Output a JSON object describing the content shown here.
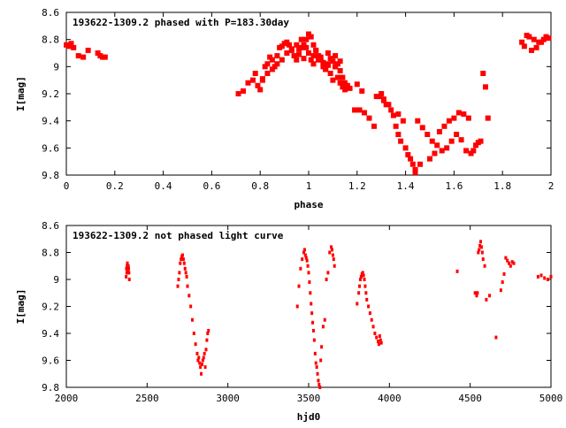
{
  "chart_data": [
    {
      "type": "scatter",
      "title": "193622-1309.2 phased with P=183.30day",
      "xlabel": "phase",
      "ylabel": "I[mag]",
      "xlim": [
        0,
        2
      ],
      "ylim": [
        8.6,
        9.8
      ],
      "y_inverted": true,
      "x_ticks": [
        0,
        0.2,
        0.4,
        0.6,
        0.8,
        1,
        1.2,
        1.4,
        1.6,
        1.8,
        2
      ],
      "y_ticks": [
        8.6,
        8.8,
        9,
        9.2,
        9.4,
        9.6,
        9.8
      ],
      "x_tick_labels": [
        "0",
        "0.2",
        "0.4",
        "0.6",
        "0.8",
        "1",
        "1.2",
        "1.4",
        "1.6",
        "1.8",
        "2"
      ],
      "y_tick_labels": [
        "8.6",
        "8.8",
        "9",
        "9.2",
        "9.4",
        "9.6",
        "9.8"
      ],
      "marker": "large",
      "color": "#ff0000",
      "series": [
        {
          "x": [
            0.0,
            0.01,
            0.02,
            0.03,
            0.05,
            0.07,
            0.09,
            0.14,
            0.15,
            0.16,
            0.13,
            0.71,
            0.73,
            0.75,
            0.77,
            0.78,
            0.8,
            0.81,
            0.82,
            0.83,
            0.84,
            0.85,
            0.86,
            0.87,
            0.88,
            0.89,
            0.9,
            0.91,
            0.92,
            0.93,
            0.94,
            0.95,
            0.96,
            0.97,
            0.98,
            0.99,
            1.0,
            1.01,
            1.02,
            1.03,
            1.04,
            1.05,
            1.06,
            1.07,
            1.08,
            1.09,
            1.1,
            1.11,
            1.12,
            1.13,
            1.14,
            1.15,
            1.16,
            1.17,
            1.19,
            1.21,
            1.23,
            1.25,
            1.27,
            1.29,
            1.3,
            1.31,
            1.32,
            1.34,
            1.35,
            1.36,
            1.37,
            1.38,
            1.4,
            1.41,
            1.42,
            1.43,
            1.44,
            1.45,
            1.47,
            1.49,
            1.51,
            1.53,
            1.55,
            1.57,
            1.59,
            1.61,
            1.63,
            1.65,
            1.67,
            1.68,
            1.69,
            1.7,
            1.71,
            1.72,
            1.73,
            1.74,
            0.79,
            0.81,
            0.83,
            0.85,
            0.87,
            0.89,
            0.91,
            0.93,
            0.95,
            0.97,
            0.99,
            1.0,
            1.01,
            1.02,
            1.03,
            1.04,
            1.05,
            1.06,
            1.07,
            1.08,
            1.09,
            1.1,
            1.11,
            1.12,
            1.13,
            1.14,
            1.15,
            1.16,
            0.98,
            0.96,
            1.02,
            1.06,
            1.08,
            1.11,
            1.13,
            1.88,
            1.89,
            1.9,
            1.91,
            1.92,
            1.93,
            1.94,
            1.95,
            1.96,
            1.97,
            1.98,
            1.99,
            1.44,
            1.46,
            1.5,
            1.52,
            1.54,
            1.56,
            1.58,
            1.6,
            1.62,
            1.64,
            1.66,
            1.39,
            1.37,
            1.33,
            1.31,
            1.28,
            1.22,
            1.2
          ],
          "y": [
            8.84,
            8.85,
            8.83,
            8.86,
            8.92,
            8.93,
            8.88,
            8.92,
            8.93,
            8.93,
            8.9,
            9.2,
            9.18,
            9.12,
            9.1,
            9.05,
            9.17,
            9.1,
            9.0,
            8.98,
            8.93,
            8.95,
            9.0,
            8.92,
            8.86,
            8.85,
            8.83,
            8.82,
            8.84,
            8.87,
            8.92,
            8.95,
            8.91,
            8.86,
            8.84,
            8.8,
            8.76,
            8.78,
            8.84,
            8.88,
            8.92,
            8.95,
            8.98,
            9.02,
            8.99,
            9.05,
            9.1,
            9.0,
            9.08,
            9.12,
            9.15,
            9.17,
            9.15,
            9.16,
            9.32,
            9.32,
            9.34,
            9.38,
            9.44,
            9.22,
            9.2,
            9.24,
            9.28,
            9.32,
            9.36,
            9.44,
            9.5,
            9.55,
            9.6,
            9.65,
            9.68,
            9.72,
            9.76,
            9.4,
            9.45,
            9.5,
            9.55,
            9.58,
            9.62,
            9.6,
            9.55,
            9.5,
            9.54,
            9.62,
            9.64,
            9.62,
            9.58,
            9.56,
            9.55,
            9.05,
            9.15,
            9.38,
            9.14,
            9.09,
            9.05,
            9.02,
            8.98,
            8.95,
            8.9,
            8.88,
            8.84,
            8.8,
            8.86,
            8.9,
            8.95,
            8.92,
            8.88,
            8.95,
            8.93,
            8.97,
            9.02,
            8.98,
            8.94,
            8.96,
            9.0,
            8.98,
            9.03,
            9.08,
            9.12,
            9.14,
            8.94,
            8.87,
            8.98,
            9.0,
            8.9,
            8.92,
            8.96,
            8.82,
            8.85,
            8.77,
            8.78,
            8.88,
            8.8,
            8.86,
            8.82,
            8.82,
            8.8,
            8.78,
            8.79,
            9.78,
            9.72,
            9.68,
            9.64,
            9.48,
            9.44,
            9.4,
            9.38,
            9.34,
            9.35,
            9.38,
            9.4,
            9.35,
            9.28,
            9.25,
            9.22,
            9.18,
            9.13
          ]
        }
      ]
    },
    {
      "type": "scatter",
      "title": "193622-1309.2 not phased light curve",
      "xlabel": "hjd0",
      "ylabel": "I[mag]",
      "xlim": [
        2000,
        5000
      ],
      "ylim": [
        8.6,
        9.8
      ],
      "y_inverted": true,
      "x_ticks": [
        2000,
        2500,
        3000,
        3500,
        4000,
        4500,
        5000
      ],
      "y_ticks": [
        8.6,
        8.8,
        9,
        9.2,
        9.4,
        9.6,
        9.8
      ],
      "x_tick_labels": [
        "2000",
        "2500",
        "3000",
        "3500",
        "4000",
        "4500",
        "5000"
      ],
      "y_tick_labels": [
        "8.6",
        "8.8",
        "9",
        "9.2",
        "9.4",
        "9.6",
        "9.8"
      ],
      "marker": "small",
      "color": "#ff0000",
      "series": [
        {
          "x": [
            2370,
            2372,
            2374,
            2376,
            2378,
            2380,
            2382,
            2384,
            2386,
            2388,
            2390,
            2690,
            2695,
            2700,
            2705,
            2710,
            2715,
            2720,
            2725,
            2730,
            2735,
            2740,
            2745,
            2750,
            2760,
            2770,
            2780,
            2790,
            2800,
            2810,
            2815,
            2820,
            2825,
            2830,
            2835,
            2840,
            2845,
            2850,
            2855,
            2860,
            2865,
            2870,
            2875,
            2880,
            3430,
            3440,
            3450,
            3460,
            3470,
            3475,
            3480,
            3485,
            3490,
            3495,
            3500,
            3505,
            3510,
            3515,
            3520,
            3525,
            3530,
            3535,
            3540,
            3545,
            3550,
            3555,
            3560,
            3565,
            3570,
            3575,
            3580,
            3590,
            3600,
            3610,
            3620,
            3630,
            3640,
            3645,
            3650,
            3655,
            3660,
            3800,
            3810,
            3815,
            3820,
            3825,
            3830,
            3835,
            3840,
            3845,
            3850,
            3855,
            3860,
            3870,
            3880,
            3890,
            3900,
            3910,
            3920,
            3930,
            3935,
            3940,
            3945,
            3950,
            4420,
            4530,
            4540,
            4545,
            4550,
            4555,
            4560,
            4565,
            4570,
            4575,
            4580,
            4590,
            4600,
            4620,
            4660,
            4690,
            4700,
            4710,
            4720,
            4730,
            4740,
            4750,
            4760,
            4770,
            4920,
            4940,
            4960,
            4980,
            5000
          ],
          "y": [
            8.98,
            8.92,
            8.95,
            8.9,
            8.88,
            8.93,
            8.95,
            8.9,
            8.92,
            8.95,
            9.0,
            9.05,
            9.0,
            8.95,
            8.88,
            8.85,
            8.83,
            8.82,
            8.85,
            8.88,
            8.92,
            8.95,
            8.98,
            9.05,
            9.12,
            9.2,
            9.3,
            9.4,
            9.48,
            9.55,
            9.6,
            9.58,
            9.62,
            9.65,
            9.7,
            9.63,
            9.6,
            9.58,
            9.55,
            9.65,
            9.52,
            9.45,
            9.4,
            9.38,
            9.2,
            9.05,
            8.92,
            8.85,
            8.8,
            8.78,
            8.82,
            8.84,
            8.86,
            8.9,
            8.95,
            9.02,
            9.1,
            9.18,
            9.25,
            9.32,
            9.38,
            9.45,
            9.55,
            9.62,
            9.65,
            9.7,
            9.75,
            9.78,
            9.8,
            9.6,
            9.5,
            9.35,
            9.3,
            9.0,
            8.95,
            8.8,
            8.76,
            8.78,
            8.82,
            8.85,
            8.9,
            9.18,
            9.1,
            9.05,
            9.0,
            8.98,
            8.96,
            8.95,
            8.97,
            9.0,
            9.05,
            9.1,
            9.15,
            9.2,
            9.25,
            9.3,
            9.35,
            9.4,
            9.43,
            9.46,
            9.48,
            9.42,
            9.45,
            9.47,
            8.94,
            9.1,
            9.12,
            9.1,
            8.8,
            8.78,
            8.75,
            8.72,
            8.76,
            8.8,
            8.85,
            8.9,
            9.15,
            9.12,
            9.43,
            9.08,
            9.02,
            8.96,
            8.84,
            8.86,
            8.88,
            8.9,
            8.87,
            8.88,
            8.98,
            8.97,
            8.99,
            9.0,
            8.98
          ]
        }
      ]
    }
  ]
}
